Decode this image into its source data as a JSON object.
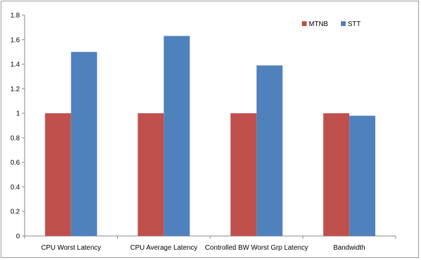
{
  "chart_data": {
    "type": "bar",
    "title": "",
    "xlabel": "",
    "ylabel": "",
    "categories": [
      "CPU Worst Latency",
      "CPU Average Latency",
      "Controlled BW Worst Grp Latency",
      "Bandwidth"
    ],
    "series": [
      {
        "name": "MTNB",
        "color": "#c0504d",
        "values": [
          1,
          1,
          1,
          1
        ]
      },
      {
        "name": "STT",
        "color": "#4f81bd",
        "values": [
          1.5,
          1.63,
          1.39,
          0.98
        ]
      }
    ],
    "ylim": [
      0,
      1.8
    ],
    "yticks": [
      "0",
      "0.2",
      "0.4",
      "0.6",
      "0.8",
      "1",
      "1.2",
      "1.4",
      "1.6",
      "1.8"
    ],
    "grid": false,
    "legend_position": "top-right"
  }
}
